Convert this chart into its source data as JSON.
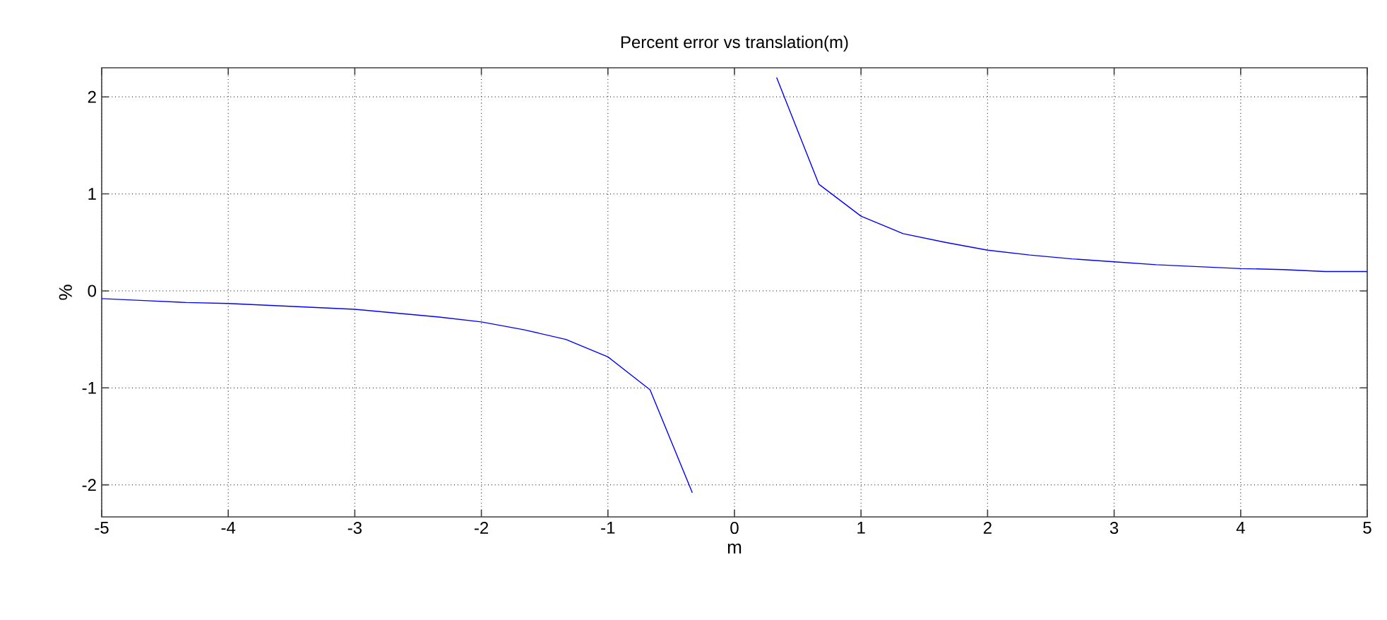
{
  "chart_data": {
    "type": "line",
    "title": "Percent error vs translation(m)",
    "xlabel": "m",
    "ylabel": "%",
    "x": [
      -5,
      -4.667,
      -4.333,
      -4,
      -3.667,
      -3.333,
      -3,
      -2.667,
      -2.333,
      -2,
      -1.667,
      -1.333,
      -1,
      -0.667,
      -0.333,
      0,
      0.333,
      0.667,
      1,
      1.333,
      1.667,
      2,
      2.333,
      2.667,
      3,
      3.333,
      3.667,
      4,
      4.333,
      4.667,
      5
    ],
    "series": [
      {
        "color": "#0000ff",
        "values": [
          -0.08,
          -0.1,
          -0.12,
          -0.13,
          -0.15,
          -0.17,
          -0.19,
          -0.23,
          -0.27,
          -0.32,
          -0.4,
          -0.5,
          -0.68,
          -1.02,
          -2.08,
          null,
          2.2,
          1.1,
          0.77,
          0.59,
          0.5,
          0.42,
          0.37,
          0.33,
          0.3,
          0.27,
          0.25,
          0.23,
          0.22,
          0.2,
          0.2
        ]
      }
    ],
    "xlim": [
      -5,
      5
    ],
    "ylim": [
      -2.33,
      2.3
    ],
    "xticks": [
      -5,
      -4,
      -3,
      -2,
      -1,
      0,
      1,
      2,
      3,
      4,
      5
    ],
    "yticks": [
      -2,
      -1,
      0,
      1,
      2
    ],
    "grid": true,
    "marker": "none",
    "line_style": "solid"
  }
}
